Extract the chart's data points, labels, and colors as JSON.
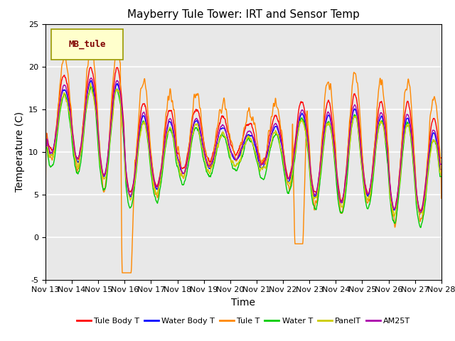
{
  "title": "Mayberry Tule Tower: IRT and Sensor Temp",
  "xlabel": "Time",
  "ylabel": "Temperature (C)",
  "ylim": [
    -5,
    25
  ],
  "xlim": [
    0,
    15
  ],
  "x_tick_labels": [
    "Nov 13",
    "Nov 14",
    "Nov 15",
    "Nov 16",
    "Nov 17",
    "Nov 18",
    "Nov 19",
    "Nov 20",
    "Nov 21",
    "Nov 22",
    "Nov 23",
    "Nov 24",
    "Nov 25",
    "Nov 26",
    "Nov 27",
    "Nov 28"
  ],
  "yticks": [
    -5,
    0,
    5,
    10,
    15,
    20,
    25
  ],
  "legend_label": "MB_tule",
  "legend_box_color": "#ffffcc",
  "legend_text_color": "#800000",
  "series": [
    {
      "name": "Tule Body T",
      "color": "#ff0000"
    },
    {
      "name": "Water Body T",
      "color": "#0000ff"
    },
    {
      "name": "Tule T",
      "color": "#ff8800"
    },
    {
      "name": "Water T",
      "color": "#00cc00"
    },
    {
      "name": "PanelT",
      "color": "#cccc00"
    },
    {
      "name": "AM25T",
      "color": "#aa00aa"
    }
  ],
  "bg_color": "#e8e8e8",
  "grid_color": "#ffffff",
  "title_fontsize": 11,
  "axis_fontsize": 10,
  "tick_fontsize": 8
}
